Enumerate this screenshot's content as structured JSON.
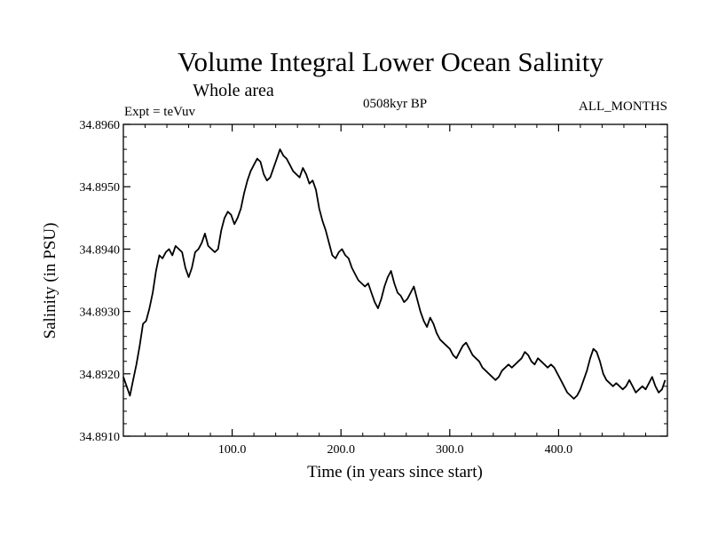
{
  "header": {
    "title": "Volume Integral Lower Ocean Salinity",
    "subtitle": "Whole area",
    "expt": "Expt = teVuv",
    "period": "0508kyr BP",
    "months": "ALL_MONTHS"
  },
  "chart_data": {
    "type": "line",
    "title": "Volume Integral Lower Ocean Salinity",
    "subtitle": "Whole area",
    "xlabel": "Time (in years since start)",
    "ylabel": "Salinity (in PSU)",
    "xlim": [
      0,
      500
    ],
    "ylim": [
      34.891,
      34.896
    ],
    "grid": false,
    "x_ticks": [
      100,
      200,
      300,
      400
    ],
    "x_tick_labels": [
      "100.0",
      "200.0",
      "300.0",
      "400.0"
    ],
    "y_ticks": [
      34.891,
      34.892,
      34.893,
      34.894,
      34.895,
      34.896
    ],
    "y_tick_labels": [
      "34.8910",
      "34.8920",
      "34.8930",
      "34.8940",
      "34.8950",
      "34.8960"
    ],
    "series": [
      {
        "x": [
          0,
          3,
          6,
          9,
          12,
          15,
          18,
          21,
          24,
          27,
          30,
          33,
          36,
          39,
          42,
          45,
          48,
          51,
          54,
          57,
          60,
          63,
          66,
          69,
          72,
          75,
          78,
          81,
          84,
          87,
          90,
          93,
          96,
          99,
          102,
          105,
          108,
          111,
          114,
          117,
          120,
          123,
          126,
          129,
          132,
          135,
          138,
          141,
          144,
          147,
          150,
          153,
          156,
          159,
          162,
          165,
          168,
          171,
          174,
          177,
          180,
          183,
          186,
          189,
          192,
          195,
          198,
          201,
          204,
          207,
          210,
          213,
          216,
          219,
          222,
          225,
          228,
          231,
          234,
          237,
          240,
          243,
          246,
          249,
          252,
          255,
          258,
          261,
          264,
          267,
          270,
          273,
          276,
          279,
          282,
          285,
          288,
          291,
          294,
          297,
          300,
          303,
          306,
          309,
          312,
          315,
          318,
          321,
          324,
          327,
          330,
          333,
          336,
          339,
          342,
          345,
          348,
          351,
          354,
          357,
          360,
          363,
          366,
          369,
          372,
          375,
          378,
          381,
          384,
          387,
          390,
          393,
          396,
          399,
          402,
          405,
          408,
          411,
          414,
          417,
          420,
          423,
          426,
          429,
          432,
          435,
          438,
          441,
          444,
          447,
          450,
          453,
          456,
          459,
          462,
          465,
          468,
          471,
          474,
          477,
          480,
          483,
          486,
          489,
          492,
          495,
          498
        ],
        "values": [
          34.89195,
          34.8918,
          34.89165,
          34.8919,
          34.89215,
          34.89245,
          34.8928,
          34.89285,
          34.89305,
          34.8933,
          34.89365,
          34.8939,
          34.89385,
          34.89395,
          34.894,
          34.8939,
          34.89405,
          34.894,
          34.89395,
          34.8937,
          34.89355,
          34.8937,
          34.89395,
          34.894,
          34.8941,
          34.89425,
          34.89405,
          34.894,
          34.89395,
          34.894,
          34.8943,
          34.8945,
          34.8946,
          34.89455,
          34.8944,
          34.8945,
          34.89465,
          34.8949,
          34.8951,
          34.89525,
          34.89535,
          34.89545,
          34.8954,
          34.8952,
          34.8951,
          34.89515,
          34.8953,
          34.89545,
          34.8956,
          34.8955,
          34.89545,
          34.89535,
          34.89525,
          34.8952,
          34.89515,
          34.8953,
          34.8952,
          34.89505,
          34.8951,
          34.89495,
          34.89465,
          34.89445,
          34.8943,
          34.8941,
          34.8939,
          34.89385,
          34.89395,
          34.894,
          34.8939,
          34.89385,
          34.8937,
          34.8936,
          34.8935,
          34.89345,
          34.8934,
          34.89345,
          34.8933,
          34.89315,
          34.89305,
          34.8932,
          34.8934,
          34.89355,
          34.89365,
          34.89345,
          34.8933,
          34.89325,
          34.89315,
          34.8932,
          34.8933,
          34.8934,
          34.8932,
          34.893,
          34.89285,
          34.89275,
          34.8929,
          34.8928,
          34.89265,
          34.89255,
          34.8925,
          34.89245,
          34.8924,
          34.8923,
          34.89225,
          34.89235,
          34.89245,
          34.8925,
          34.8924,
          34.8923,
          34.89225,
          34.8922,
          34.8921,
          34.89205,
          34.892,
          34.89195,
          34.8919,
          34.89195,
          34.89205,
          34.8921,
          34.89215,
          34.8921,
          34.89215,
          34.8922,
          34.89225,
          34.89235,
          34.8923,
          34.8922,
          34.89215,
          34.89225,
          34.8922,
          34.89215,
          34.8921,
          34.89215,
          34.8921,
          34.892,
          34.8919,
          34.8918,
          34.8917,
          34.89165,
          34.8916,
          34.89165,
          34.89175,
          34.8919,
          34.89205,
          34.89225,
          34.8924,
          34.89235,
          34.8922,
          34.892,
          34.8919,
          34.89185,
          34.8918,
          34.89185,
          34.8918,
          34.89175,
          34.8918,
          34.8919,
          34.8918,
          34.8917,
          34.89175,
          34.8918,
          34.89175,
          34.89185,
          34.89195,
          34.8918,
          34.8917,
          34.89175,
          34.8919
        ]
      }
    ]
  }
}
